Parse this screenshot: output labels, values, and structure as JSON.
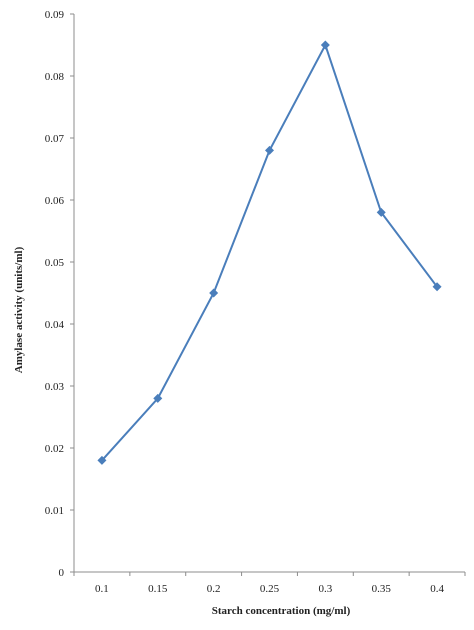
{
  "chart_data": {
    "type": "line",
    "title": "",
    "xlabel": "Starch concentration (mg/ml)",
    "ylabel": "Amylase activity (units/ml)",
    "categories": [
      "0.1",
      "0.15",
      "0.2",
      "0.25",
      "0.3",
      "0.35",
      "0.4"
    ],
    "x_tick_labels": [
      "0.1",
      "0.15",
      "0.2",
      "0.25",
      "0.3",
      "0.35",
      "0.4"
    ],
    "y_tick_labels": [
      "0",
      "0.01",
      "0.02",
      "0.03",
      "0.04",
      "0.05",
      "0.06",
      "0.07",
      "0.08",
      "0.09"
    ],
    "ylim": [
      0,
      0.09
    ],
    "grid": false,
    "legend": "none",
    "series": [
      {
        "values": [
          0.018,
          0.028,
          0.045,
          0.068,
          0.085,
          0.058,
          0.046
        ],
        "color": "#4a7ebb"
      }
    ]
  }
}
